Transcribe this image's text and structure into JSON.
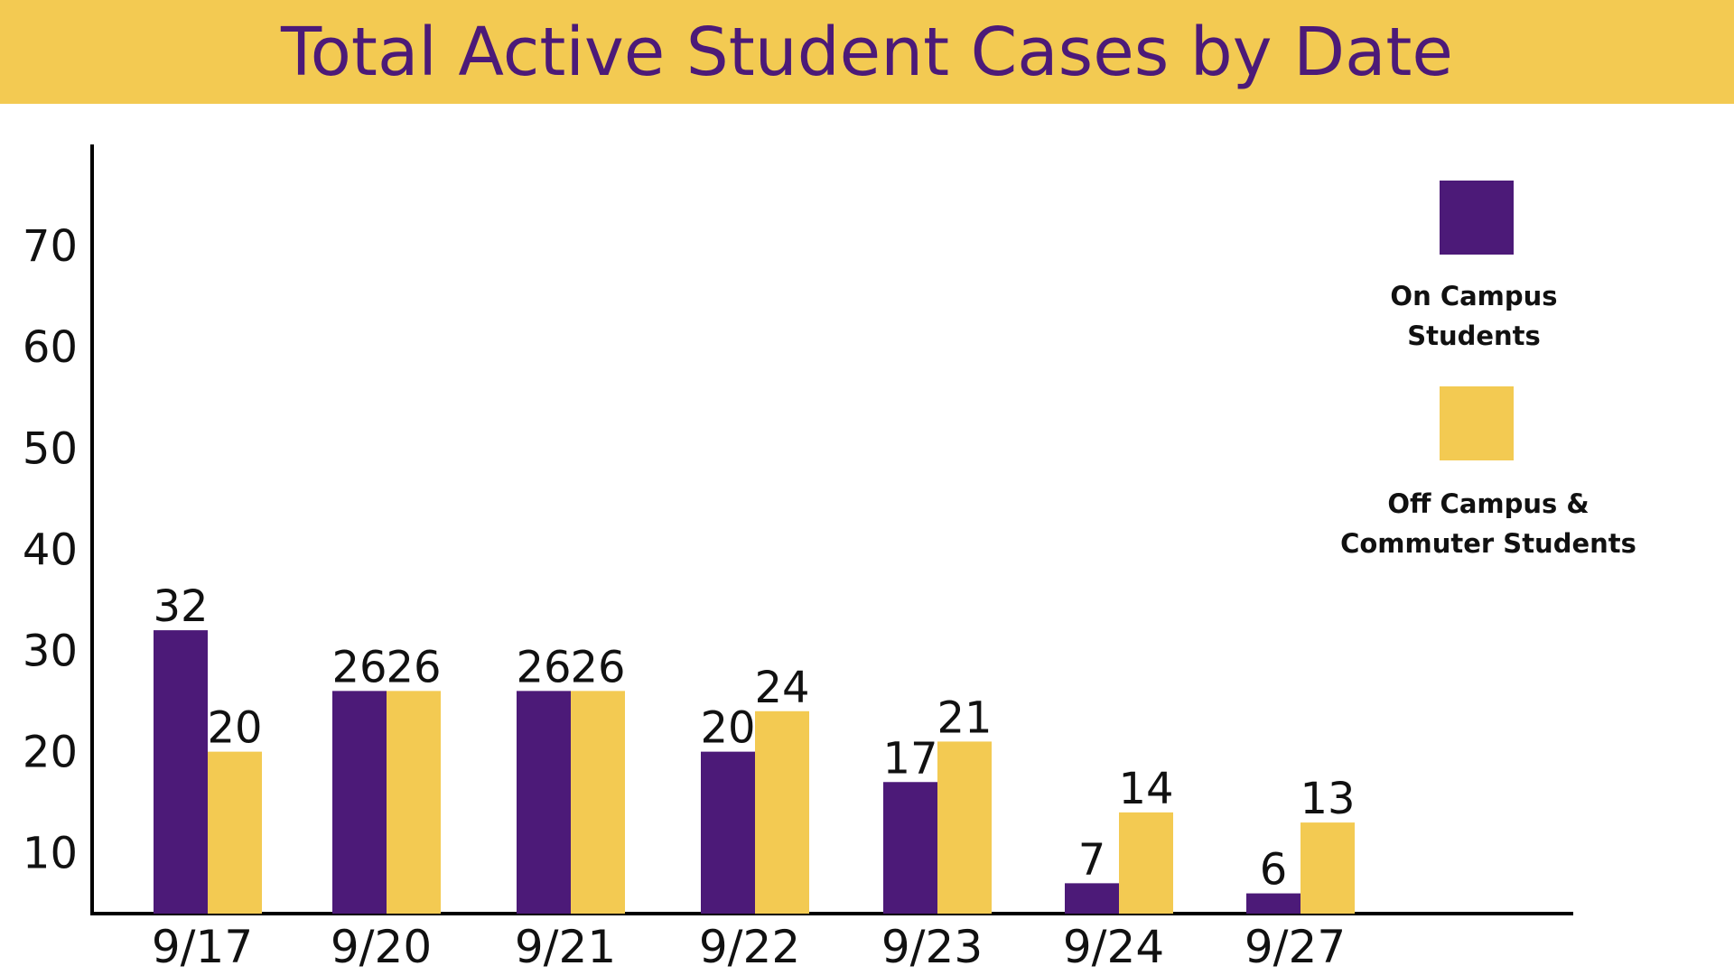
{
  "chart_data": {
    "type": "bar",
    "title": "Total Active Student Cases by Date",
    "categories": [
      "9/17",
      "9/20",
      "9/21",
      "9/22",
      "9/23",
      "9/24",
      "9/27"
    ],
    "series": [
      {
        "name": "On Campus Students",
        "values": [
          32,
          26,
          26,
          20,
          17,
          7,
          6
        ],
        "color": "#4c1a78"
      },
      {
        "name": "Off Campus & Commuter Students",
        "values": [
          20,
          26,
          26,
          24,
          21,
          14,
          13
        ],
        "color": "#f3ca52"
      }
    ],
    "yticks": [
      10,
      20,
      30,
      40,
      50,
      60,
      70
    ],
    "ylim": [
      4,
      80
    ],
    "xlabel": "",
    "ylabel": "",
    "legend_position": "top-right",
    "legend_lines": [
      [
        "On Campus",
        "Students"
      ],
      [
        "Off Campus &",
        "Commuter Students"
      ]
    ],
    "grid": false
  }
}
